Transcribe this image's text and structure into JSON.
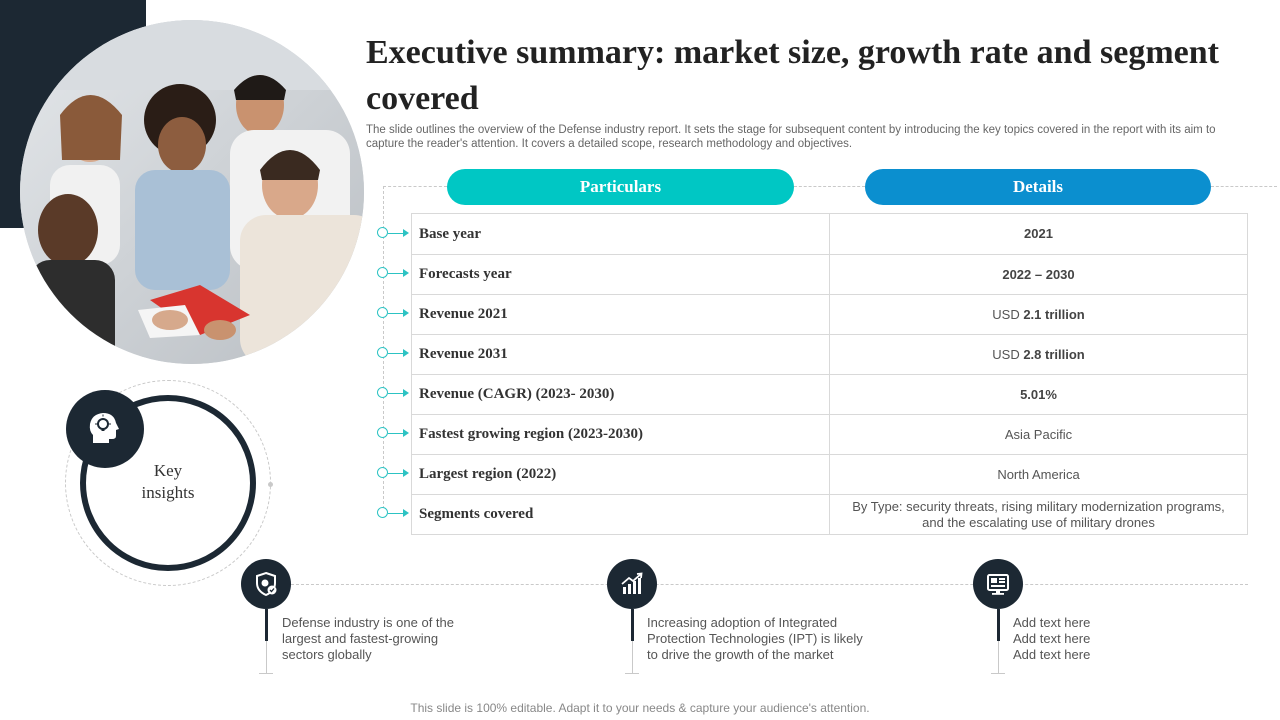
{
  "title": "Executive summary: market size, growth rate and segment covered",
  "subtitle": "The slide outlines the overview of the Defense industry report. It sets the stage for subsequent content by introducing the key topics covered in the report with its aim to capture the reader's attention. It covers a detailed scope, research methodology and objectives.",
  "table": {
    "header_left": "Particulars",
    "header_right": "Details",
    "rows": [
      {
        "label": "Base year",
        "value": "2021"
      },
      {
        "label": "Forecasts year",
        "value": "2022 – 2030"
      },
      {
        "label": "Revenue 2021",
        "value_prefix": "USD ",
        "value_strong": "2.1 trillion"
      },
      {
        "label": "Revenue 2031",
        "value_prefix": "USD ",
        "value_strong": "2.8 trillion"
      },
      {
        "label": "Revenue (CAGR) (2023- 2030)",
        "value": "5.01%"
      },
      {
        "label": "Fastest growing region (2023-2030)",
        "value": "Asia Pacific"
      },
      {
        "label": "Largest region (2022)",
        "value": "North America"
      },
      {
        "label": "Segments covered",
        "value": "By Type: security threats, rising military modernization programs, and the escalating use of military drones"
      }
    ]
  },
  "key_insights": {
    "label_line1": "Key",
    "label_line2": "insights",
    "icon": "head-lightbulb-icon"
  },
  "insights": [
    {
      "icon": "shield-virus-icon",
      "lines": [
        "Defense industry is one of the",
        "largest and fastest-growing",
        "sectors globally"
      ]
    },
    {
      "icon": "growth-chart-icon",
      "lines": [
        "Increasing adoption of Integrated",
        "Protection Technologies (IPT) is likely",
        "to drive the growth of the market"
      ]
    },
    {
      "icon": "monitor-dashboard-icon",
      "lines": [
        "Add text here",
        "Add text here",
        "Add text here"
      ]
    }
  ],
  "footer": "This slide is 100% editable. Adapt it to your needs & capture your audience's attention.",
  "colors": {
    "dark": "#1c2833",
    "teal": "#00c7c4",
    "blue": "#0b8fcf"
  }
}
